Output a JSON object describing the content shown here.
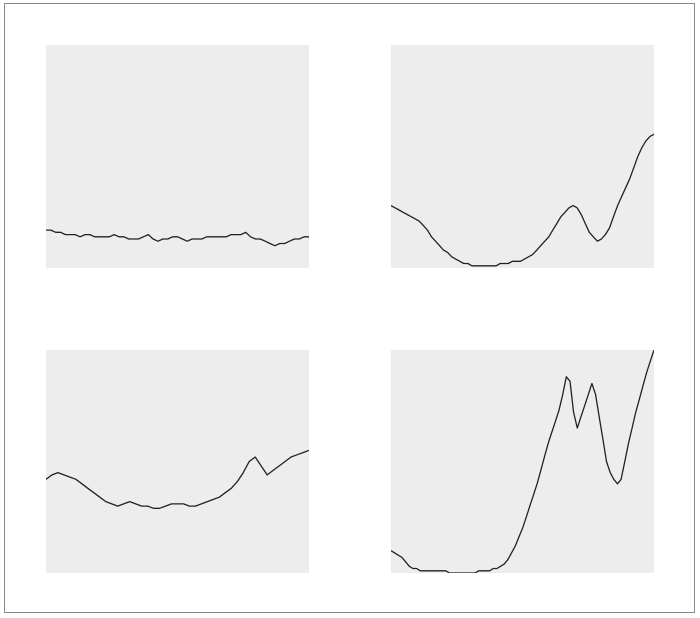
{
  "colors": {
    "panel_background": "#ededed",
    "line": "#222222",
    "frame": "#8a8a8a"
  },
  "chart_data": [
    {
      "type": "line",
      "title": "",
      "xlabel": "",
      "ylabel": "",
      "grid": false,
      "legend": "none",
      "ylim": [
        0,
        100
      ],
      "series": [
        {
          "values": [
            17,
            17,
            16,
            16,
            15,
            15,
            15,
            14,
            15,
            15,
            14,
            14,
            14,
            14,
            15,
            14,
            14,
            13,
            13,
            13,
            14,
            15,
            13,
            12,
            13,
            13,
            14,
            14,
            13,
            12,
            13,
            13,
            13,
            14,
            14,
            14,
            14,
            14,
            15,
            15,
            15,
            16,
            14,
            13,
            13,
            12,
            11,
            10,
            11,
            11,
            12,
            13,
            13,
            14,
            14
          ]
        }
      ]
    },
    {
      "type": "line",
      "title": "",
      "xlabel": "",
      "ylabel": "",
      "grid": false,
      "legend": "none",
      "ylim": [
        0,
        100
      ],
      "series": [
        {
          "values": [
            28,
            27,
            26,
            25,
            24,
            23,
            22,
            21,
            19,
            17,
            14,
            12,
            10,
            8,
            7,
            5,
            4,
            3,
            2,
            2,
            1,
            1,
            1,
            1,
            1,
            1,
            1,
            2,
            2,
            2,
            3,
            3,
            3,
            4,
            5,
            6,
            8,
            10,
            12,
            14,
            17,
            20,
            23,
            25,
            27,
            28,
            27,
            24,
            20,
            16,
            14,
            12,
            13,
            15,
            18,
            23,
            28,
            32,
            36,
            40,
            45,
            50,
            54,
            57,
            59,
            60
          ]
        }
      ]
    },
    {
      "type": "line",
      "title": "",
      "xlabel": "",
      "ylabel": "",
      "grid": false,
      "legend": "none",
      "ylim": [
        0,
        100
      ],
      "series": [
        {
          "values": [
            42,
            44,
            45,
            44,
            43,
            42,
            40,
            38,
            36,
            34,
            32,
            31,
            30,
            31,
            32,
            31,
            30,
            30,
            29,
            29,
            30,
            31,
            31,
            31,
            30,
            30,
            31,
            32,
            33,
            34,
            36,
            38,
            41,
            45,
            50,
            52,
            48,
            44,
            46,
            48,
            50,
            52,
            53,
            54,
            55
          ]
        }
      ]
    },
    {
      "type": "line",
      "title": "",
      "xlabel": "",
      "ylabel": "",
      "grid": false,
      "legend": "none",
      "ylim": [
        0,
        100
      ],
      "series": [
        {
          "values": [
            10,
            9,
            8,
            7,
            5,
            3,
            2,
            2,
            1,
            1,
            1,
            1,
            1,
            1,
            1,
            1,
            0,
            0,
            0,
            0,
            0,
            0,
            0,
            0,
            1,
            1,
            1,
            1,
            2,
            2,
            3,
            4,
            6,
            9,
            12,
            16,
            20,
            25,
            30,
            35,
            40,
            46,
            52,
            58,
            63,
            68,
            73,
            80,
            88,
            86,
            72,
            65,
            70,
            75,
            80,
            85,
            80,
            70,
            60,
            50,
            45,
            42,
            40,
            42,
            50,
            58,
            65,
            72,
            78,
            84,
            90,
            95,
            100
          ]
        }
      ]
    }
  ]
}
